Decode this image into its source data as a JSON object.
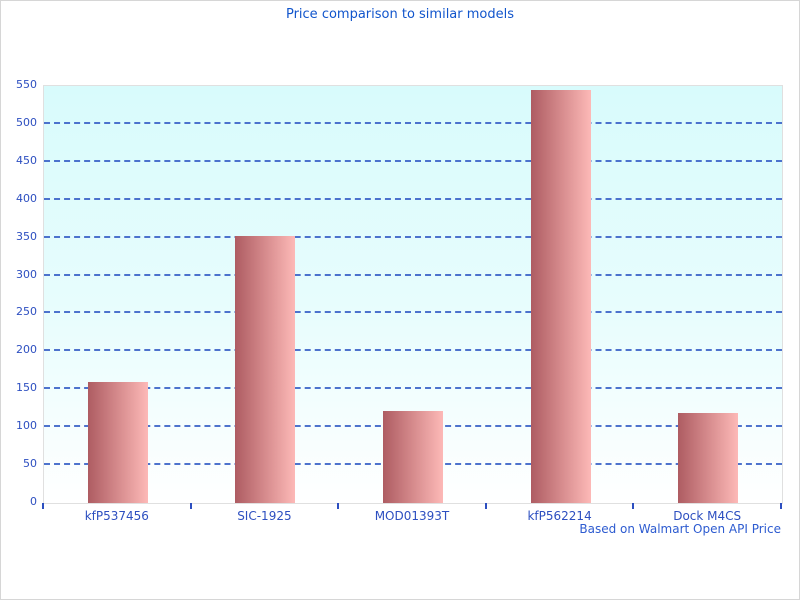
{
  "chart_data": {
    "type": "bar",
    "title": "Price comparison to similar models",
    "categories": [
      "kfP537456",
      "SIC-1925",
      "MOD01393T",
      "kfP562214",
      "Dock M4CS"
    ],
    "values": [
      160,
      352,
      121,
      545,
      119
    ],
    "xlabel": "",
    "ylabel": "",
    "ylim": [
      0,
      550
    ],
    "yticks": [
      0,
      50,
      100,
      150,
      200,
      250,
      300,
      350,
      400,
      450,
      500,
      550
    ],
    "grid": "horizontal-dashed",
    "legend": "none",
    "footer": "Based on Walmart Open API Price",
    "colors": {
      "title_text": "#1155cc",
      "tick_label_text": "#2d4fc0",
      "footer_text": "#2d5bd0",
      "gridline": "#3c64c8",
      "bar_gradient_left": "#ae5c62",
      "bar_gradient_right": "#fdb9b7",
      "plot_bg_top": "#d8fbfc",
      "plot_bg_bottom": "#ffffff",
      "plot_border": "#e0e0e0"
    }
  }
}
